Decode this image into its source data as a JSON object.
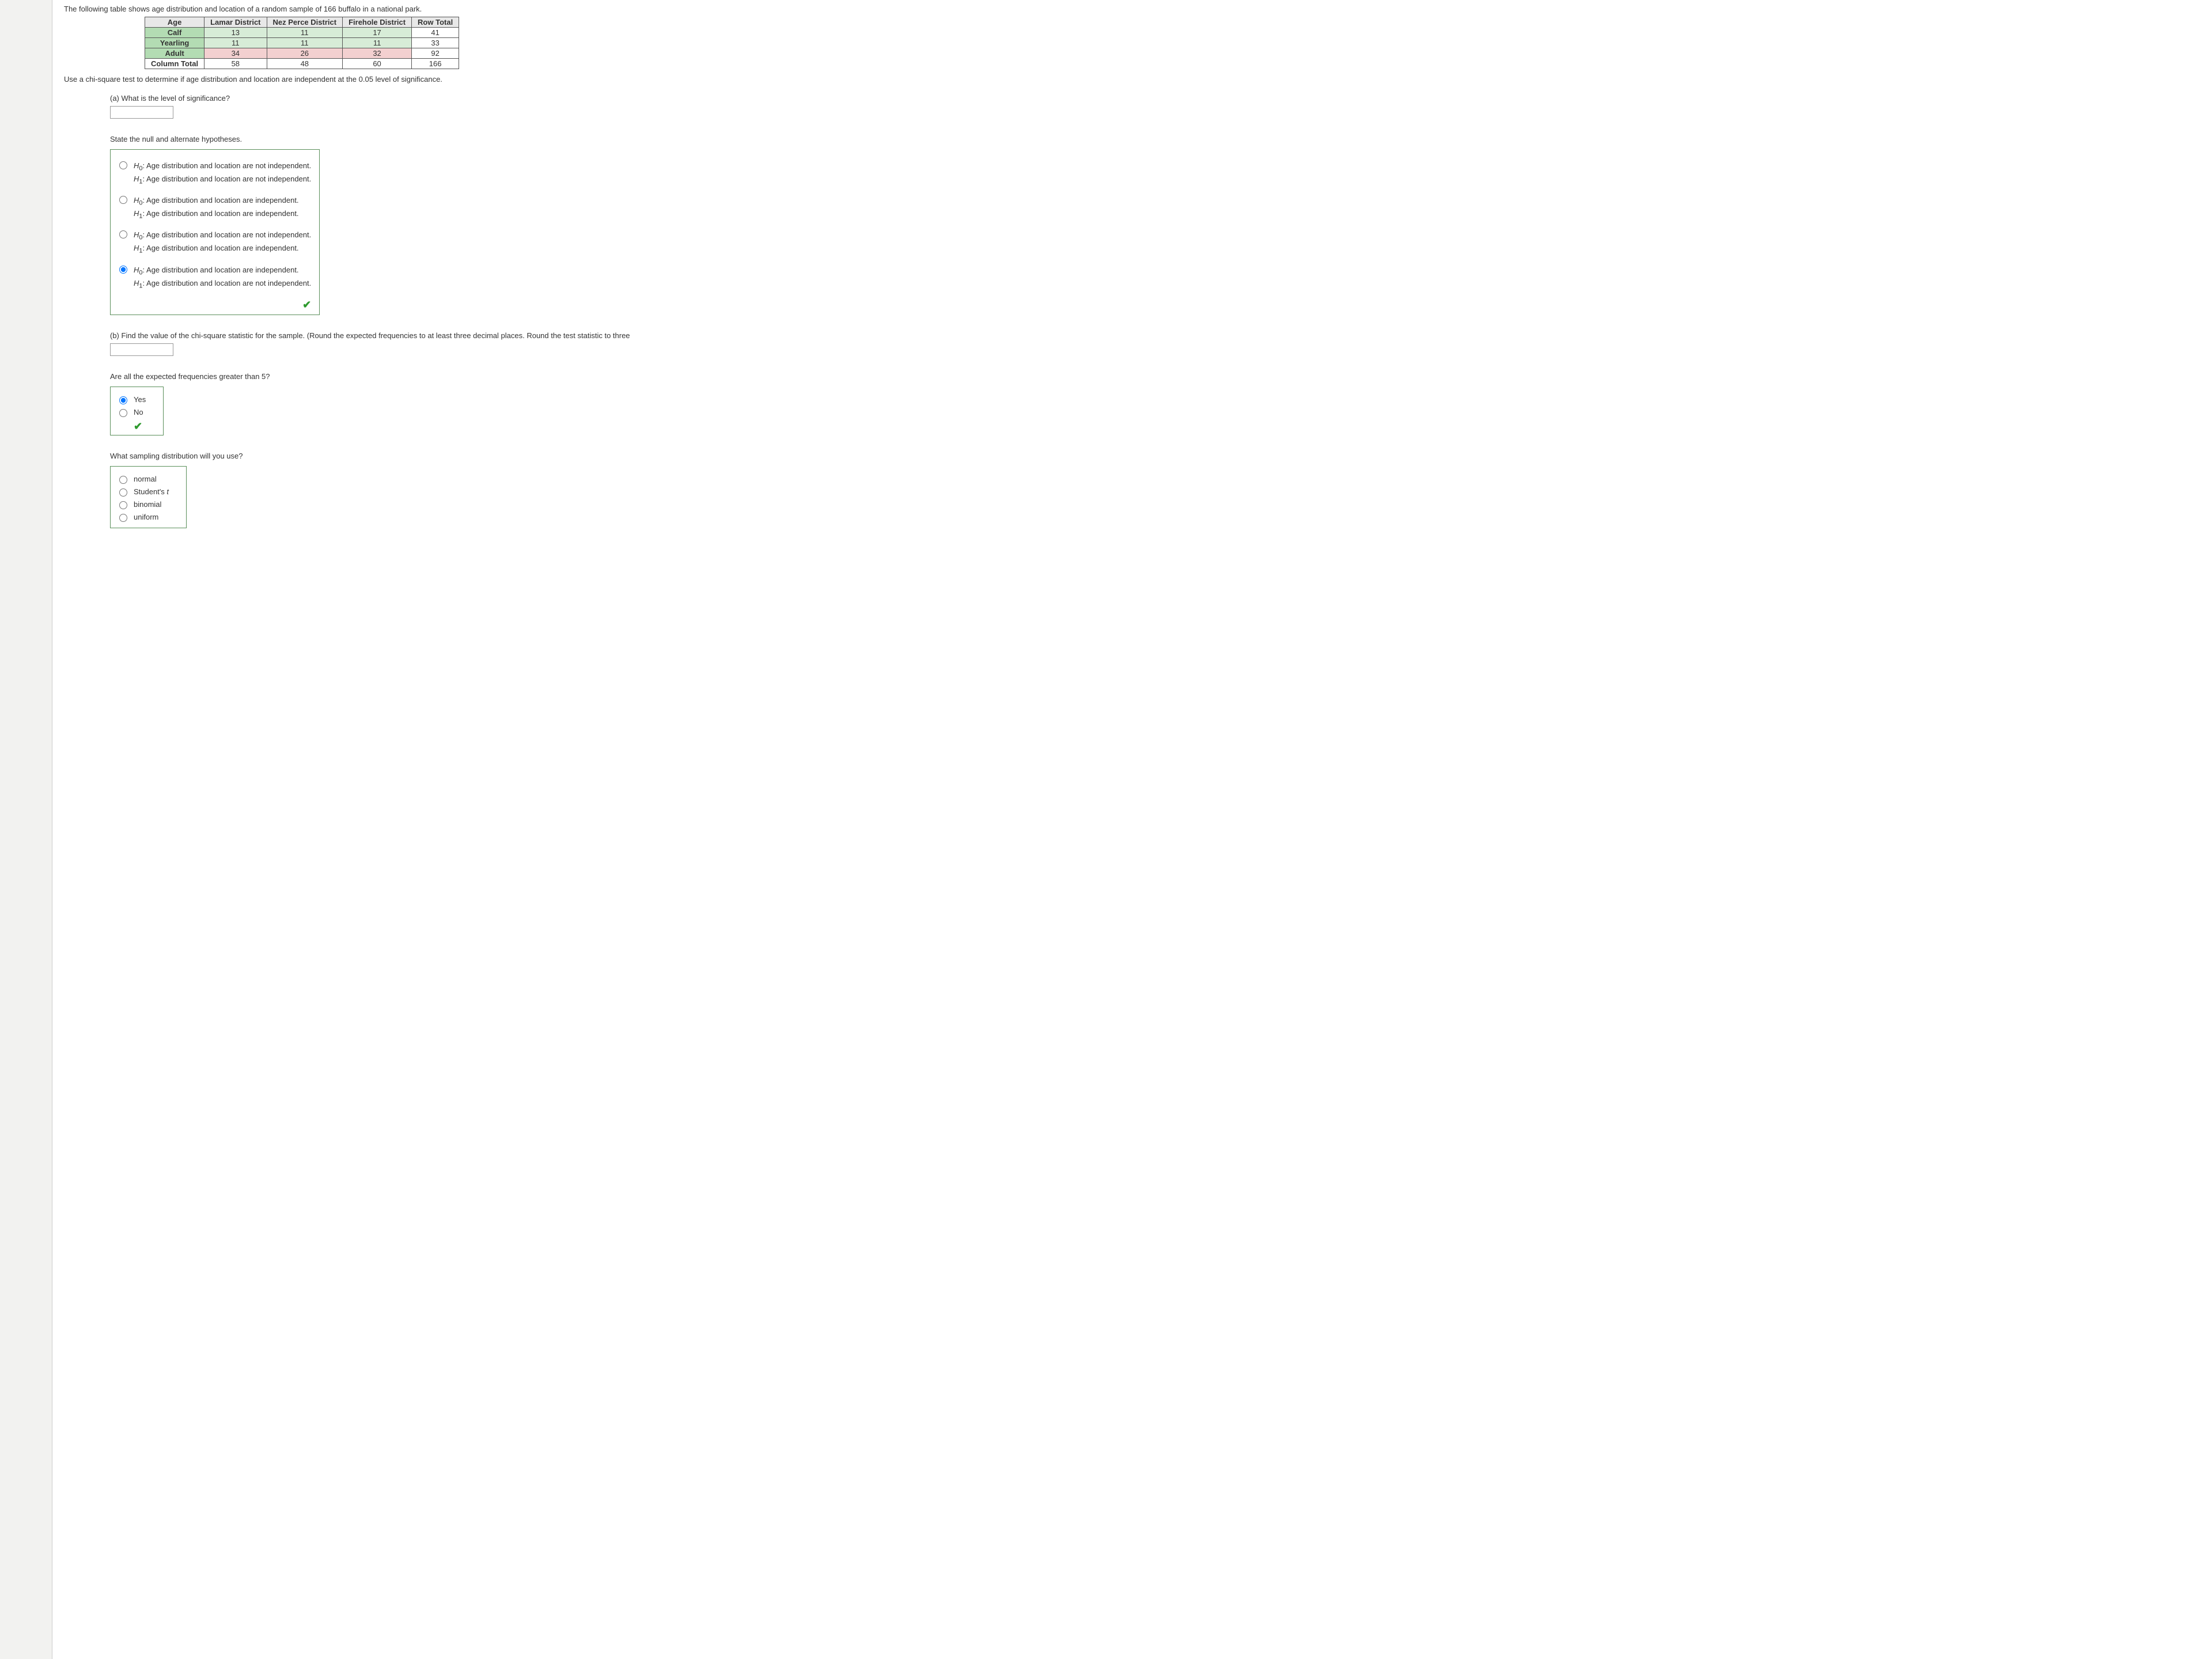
{
  "intro": "The following table shows age distribution and location of a random sample of 166 buffalo in a national park.",
  "table": {
    "headers": [
      "Age",
      "Lamar District",
      "Nez Perce District",
      "Firehole District",
      "Row Total"
    ],
    "rows": [
      {
        "label": "Calf",
        "values": [
          "13",
          "11",
          "17",
          "41"
        ],
        "labelClass": "row-label-green",
        "cellClass": "cell-green"
      },
      {
        "label": "Yearling",
        "values": [
          "11",
          "11",
          "11",
          "33"
        ],
        "labelClass": "row-label-green",
        "cellClass": "cell-green"
      },
      {
        "label": "Adult",
        "values": [
          "34",
          "26",
          "32",
          "92"
        ],
        "labelClass": "row-label-green",
        "cellClass": "cell-pink"
      },
      {
        "label": "Column Total",
        "values": [
          "58",
          "48",
          "60",
          "166"
        ],
        "labelClass": "row-label-white",
        "cellClass": ""
      }
    ]
  },
  "instruction": "Use a chi-square test to determine if age distribution and location are independent at the 0.05 level of significance.",
  "partA": {
    "question": "(a) What is the level of significance?"
  },
  "hypotheses": {
    "prompt": "State the null and alternate hypotheses.",
    "options": [
      {
        "h0": "Age distribution and location are not independent.",
        "h1": "Age distribution and location are not independent.",
        "selected": false
      },
      {
        "h0": "Age distribution and location are independent.",
        "h1": "Age distribution and location are independent.",
        "selected": false
      },
      {
        "h0": "Age distribution and location are not independent.",
        "h1": "Age distribution and location are independent.",
        "selected": false
      },
      {
        "h0": "Age distribution and location are independent.",
        "h1": "Age distribution and location are not independent.",
        "selected": true
      }
    ],
    "correct": true
  },
  "partB": {
    "question": "(b) Find the value of the chi-square statistic for the sample. (Round the expected frequencies to at least three decimal places. Round the test statistic to three"
  },
  "expected5": {
    "prompt": "Are all the expected frequencies greater than 5?",
    "options": [
      {
        "label": "Yes",
        "selected": true
      },
      {
        "label": "No",
        "selected": false
      }
    ],
    "correct": true
  },
  "samplingDist": {
    "prompt": "What sampling distribution will you use?",
    "options": [
      {
        "label": "normal"
      },
      {
        "label": "Student's t",
        "italic": true
      },
      {
        "label": "binomial"
      },
      {
        "label": "uniform"
      }
    ]
  }
}
